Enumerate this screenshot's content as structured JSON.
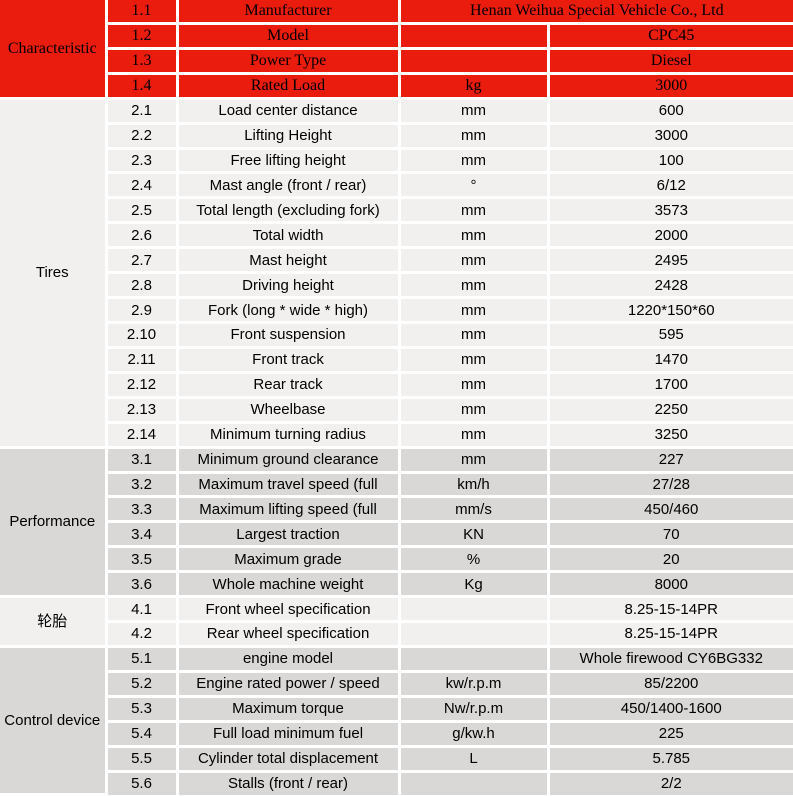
{
  "table": {
    "description": "Forklift specification sheet",
    "colors": {
      "accent_red": "#ea1c0d",
      "row_light": "#f1f0ef",
      "row_dark": "#d9d8d7",
      "gridline": "#ffffff",
      "text": "#000000"
    },
    "sections": [
      {
        "category": "Characteristic",
        "rows": [
          {
            "no": "1.1",
            "label": "Manufacturer",
            "unit": "",
            "value": "Henan Weihua Special Vehicle Co., Ltd"
          },
          {
            "no": "1.2",
            "label": "Model",
            "unit": "",
            "value": "CPC45"
          },
          {
            "no": "1.3",
            "label": "Power Type",
            "unit": "",
            "value": "Diesel"
          },
          {
            "no": "1.4",
            "label": "Rated Load",
            "unit": "kg",
            "value": "3000"
          }
        ]
      },
      {
        "category": "Tires",
        "rows": [
          {
            "no": "2.1",
            "label": "Load center distance",
            "unit": "mm",
            "value": "600"
          },
          {
            "no": "2.2",
            "label": "Lifting Height",
            "unit": "mm",
            "value": "3000"
          },
          {
            "no": "2.3",
            "label": "Free lifting height",
            "unit": "mm",
            "value": "100"
          },
          {
            "no": "2.4",
            "label": "Mast angle (front / rear)",
            "unit": "°",
            "value": "6/12"
          },
          {
            "no": "2.5",
            "label": "Total length (excluding fork)",
            "unit": "mm",
            "value": "3573"
          },
          {
            "no": "2.6",
            "label": "Total width",
            "unit": "mm",
            "value": "2000"
          },
          {
            "no": "2.7",
            "label": "Mast height",
            "unit": "mm",
            "value": "2495"
          },
          {
            "no": "2.8",
            "label": "Driving height",
            "unit": "mm",
            "value": "2428"
          },
          {
            "no": "2.9",
            "label": "Fork (long * wide * high)",
            "unit": "mm",
            "value": "1220*150*60"
          },
          {
            "no": "2.10",
            "label": "Front suspension",
            "unit": "mm",
            "value": "595"
          },
          {
            "no": "2.11",
            "label": "Front track",
            "unit": "mm",
            "value": "1470"
          },
          {
            "no": "2.12",
            "label": "Rear track",
            "unit": "mm",
            "value": "1700"
          },
          {
            "no": "2.13",
            "label": "Wheelbase",
            "unit": "mm",
            "value": "2250"
          },
          {
            "no": "2.14",
            "label": "Minimum turning radius",
            "unit": "mm",
            "value": "3250"
          }
        ]
      },
      {
        "category": "Performance",
        "rows": [
          {
            "no": "3.1",
            "label": "Minimum ground clearance",
            "unit": "mm",
            "value": "227"
          },
          {
            "no": "3.2",
            "label": "Maximum travel speed (full",
            "unit": "km/h",
            "value": "27/28"
          },
          {
            "no": "3.3",
            "label": "Maximum lifting speed (full",
            "unit": "mm/s",
            "value": "450/460"
          },
          {
            "no": "3.4",
            "label": "Largest traction",
            "unit": "KN",
            "value": "70"
          },
          {
            "no": "3.5",
            "label": "Maximum grade",
            "unit": "%",
            "value": "20"
          },
          {
            "no": "3.6",
            "label": "Whole machine weight",
            "unit": "Kg",
            "value": "8000"
          }
        ]
      },
      {
        "category": "轮胎",
        "rows": [
          {
            "no": "4.1",
            "label": "Front wheel specification",
            "unit": "",
            "value": "8.25-15-14PR"
          },
          {
            "no": "4.2",
            "label": "Rear wheel specification",
            "unit": "",
            "value": "8.25-15-14PR"
          }
        ]
      },
      {
        "category": "Control device",
        "rows": [
          {
            "no": "5.1",
            "label": "engine model",
            "unit": "",
            "value": "Whole firewood CY6BG332"
          },
          {
            "no": "5.2",
            "label": "Engine rated power / speed",
            "unit": "kw/r.p.m",
            "value": "85/2200"
          },
          {
            "no": "5.3",
            "label": "Maximum torque",
            "unit": "Nw/r.p.m",
            "value": "450/1400-1600"
          },
          {
            "no": "5.4",
            "label": "Full load minimum fuel",
            "unit": "g/kw.h",
            "value": "225"
          },
          {
            "no": "5.5",
            "label": "Cylinder total displacement",
            "unit": "L",
            "value": "5.785"
          },
          {
            "no": "5.6",
            "label": "Stalls (front / rear)",
            "unit": "",
            "value": "2/2"
          }
        ]
      }
    ]
  }
}
